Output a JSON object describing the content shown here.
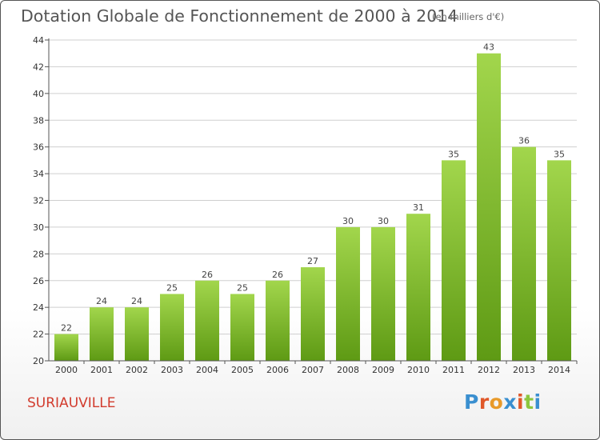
{
  "title": "Dotation Globale de Fonctionnement de 2000 à 2014",
  "subtitle": "(en milliers d'€)",
  "commune": "SURIAUVILLE",
  "logo": {
    "text": "Proxiti",
    "letter_colors": [
      "#3a8fd0",
      "#e0582a",
      "#e89a2a",
      "#3a8fd0",
      "#e0582a",
      "#8cc63e",
      "#3a8fd0"
    ]
  },
  "colors": {
    "bar_top": "#a2d64c",
    "bar_bottom": "#5e9a14",
    "grid": "#cfcfcf",
    "axis": "#555555"
  },
  "chart_data": {
    "type": "bar",
    "categories": [
      "2000",
      "2001",
      "2002",
      "2003",
      "2004",
      "2005",
      "2006",
      "2007",
      "2008",
      "2009",
      "2010",
      "2011",
      "2012",
      "2013",
      "2014"
    ],
    "values": [
      22,
      24,
      24,
      25,
      26,
      25,
      26,
      27,
      30,
      30,
      31,
      35,
      43,
      36,
      35
    ],
    "ylim": [
      20,
      44
    ],
    "yticks": [
      20,
      22,
      24,
      26,
      28,
      30,
      32,
      34,
      36,
      38,
      40,
      42,
      44
    ],
    "grid": true,
    "data_labels": true
  }
}
